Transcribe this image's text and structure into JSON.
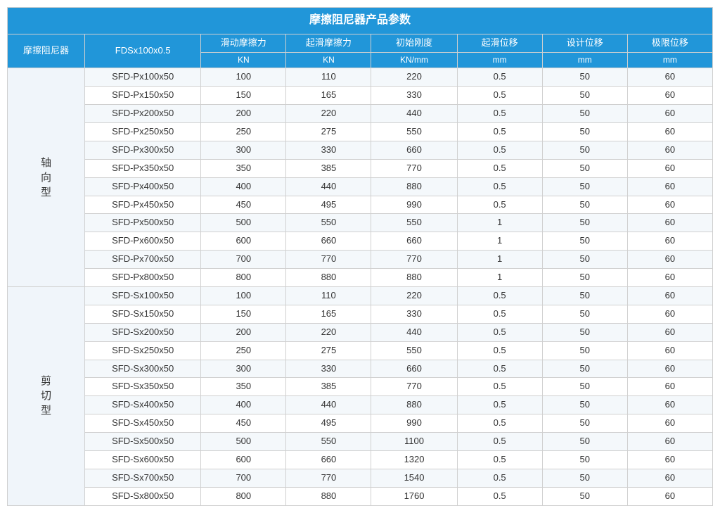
{
  "title": "摩擦阻尼器产品参数",
  "leftLabel": "摩擦阻尼器",
  "fdsLabel": "FDSx100x0.5",
  "columns": [
    {
      "name": "滑动摩擦力",
      "unit": "KN"
    },
    {
      "name": "起滑摩擦力",
      "unit": "KN"
    },
    {
      "name": "初始刚度",
      "unit": "KN/mm"
    },
    {
      "name": "起滑位移",
      "unit": "mm"
    },
    {
      "name": "设计位移",
      "unit": "mm"
    },
    {
      "name": "极限位移",
      "unit": "mm"
    }
  ],
  "groups": [
    {
      "label": "轴向型",
      "chars": [
        "轴",
        "向",
        "型"
      ],
      "rows": [
        {
          "model": "SFD-Px100x50",
          "v": [
            "100",
            "110",
            "220",
            "0.5",
            "50",
            "60"
          ]
        },
        {
          "model": "SFD-Px150x50",
          "v": [
            "150",
            "165",
            "330",
            "0.5",
            "50",
            "60"
          ]
        },
        {
          "model": "SFD-Px200x50",
          "v": [
            "200",
            "220",
            "440",
            "0.5",
            "50",
            "60"
          ]
        },
        {
          "model": "SFD-Px250x50",
          "v": [
            "250",
            "275",
            "550",
            "0.5",
            "50",
            "60"
          ]
        },
        {
          "model": "SFD-Px300x50",
          "v": [
            "300",
            "330",
            "660",
            "0.5",
            "50",
            "60"
          ]
        },
        {
          "model": "SFD-Px350x50",
          "v": [
            "350",
            "385",
            "770",
            "0.5",
            "50",
            "60"
          ]
        },
        {
          "model": "SFD-Px400x50",
          "v": [
            "400",
            "440",
            "880",
            "0.5",
            "50",
            "60"
          ]
        },
        {
          "model": "SFD-Px450x50",
          "v": [
            "450",
            "495",
            "990",
            "0.5",
            "50",
            "60"
          ]
        },
        {
          "model": "SFD-Px500x50",
          "v": [
            "500",
            "550",
            "550",
            "1",
            "50",
            "60"
          ]
        },
        {
          "model": "SFD-Px600x50",
          "v": [
            "600",
            "660",
            "660",
            "1",
            "50",
            "60"
          ]
        },
        {
          "model": "SFD-Px700x50",
          "v": [
            "700",
            "770",
            "770",
            "1",
            "50",
            "60"
          ]
        },
        {
          "model": "SFD-Px800x50",
          "v": [
            "800",
            "880",
            "880",
            "1",
            "50",
            "60"
          ]
        }
      ]
    },
    {
      "label": "剪切型",
      "chars": [
        "剪",
        "切",
        "型"
      ],
      "rows": [
        {
          "model": "SFD-Sx100x50",
          "v": [
            "100",
            "110",
            "220",
            "0.5",
            "50",
            "60"
          ]
        },
        {
          "model": "SFD-Sx150x50",
          "v": [
            "150",
            "165",
            "330",
            "0.5",
            "50",
            "60"
          ]
        },
        {
          "model": "SFD-Sx200x50",
          "v": [
            "200",
            "220",
            "440",
            "0.5",
            "50",
            "60"
          ]
        },
        {
          "model": "SFD-Sx250x50",
          "v": [
            "250",
            "275",
            "550",
            "0.5",
            "50",
            "60"
          ]
        },
        {
          "model": "SFD-Sx300x50",
          "v": [
            "300",
            "330",
            "660",
            "0.5",
            "50",
            "60"
          ]
        },
        {
          "model": "SFD-Sx350x50",
          "v": [
            "350",
            "385",
            "770",
            "0.5",
            "50",
            "60"
          ]
        },
        {
          "model": "SFD-Sx400x50",
          "v": [
            "400",
            "440",
            "880",
            "0.5",
            "50",
            "60"
          ]
        },
        {
          "model": "SFD-Sx450x50",
          "v": [
            "450",
            "495",
            "990",
            "0.5",
            "50",
            "60"
          ]
        },
        {
          "model": "SFD-Sx500x50",
          "v": [
            "500",
            "550",
            "1100",
            "0.5",
            "50",
            "60"
          ]
        },
        {
          "model": "SFD-Sx600x50",
          "v": [
            "600",
            "660",
            "1320",
            "0.5",
            "50",
            "60"
          ]
        },
        {
          "model": "SFD-Sx700x50",
          "v": [
            "700",
            "770",
            "1540",
            "0.5",
            "50",
            "60"
          ]
        },
        {
          "model": "SFD-Sx800x50",
          "v": [
            "800",
            "880",
            "1760",
            "0.5",
            "50",
            "60"
          ]
        }
      ]
    }
  ],
  "style": {
    "header_bg": "#2196d9",
    "header_fg": "#ffffff",
    "stripe_a": "#f4f8fb",
    "stripe_b": "#ffffff",
    "border": "#d0d0d0",
    "title_fontsize": 16,
    "header_fontsize": 13,
    "cell_fontsize": 13
  }
}
